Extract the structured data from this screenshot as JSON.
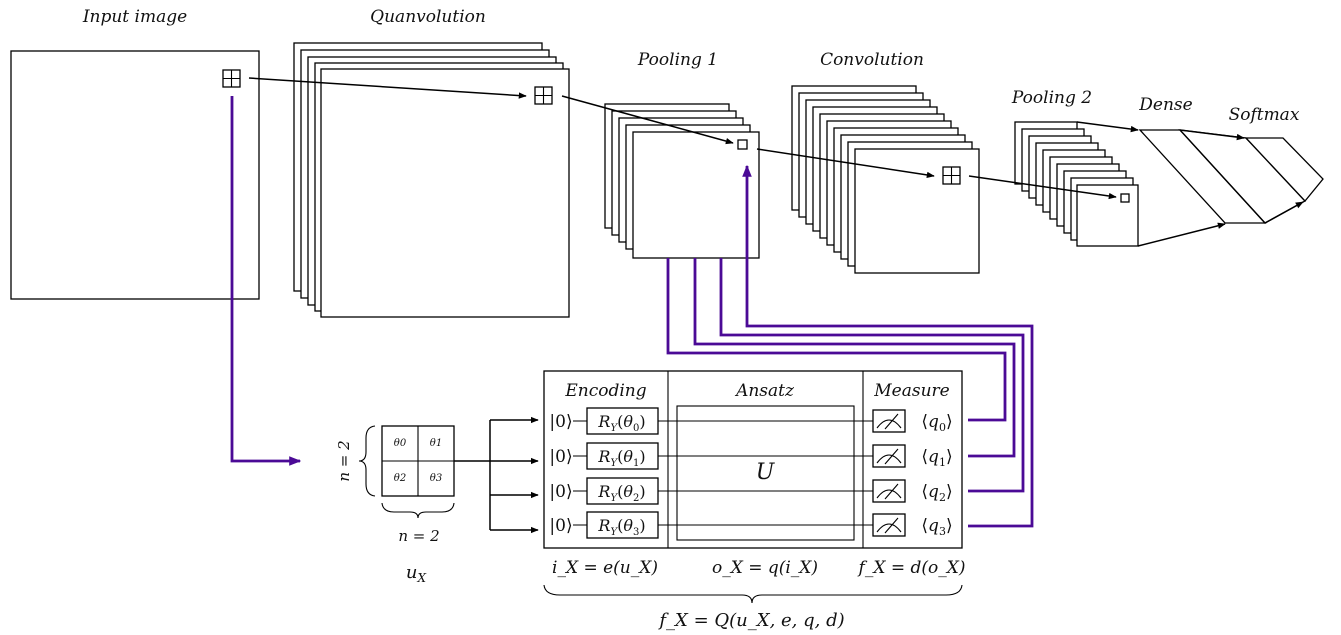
{
  "colors": {
    "quantum_link": "#4b0a96",
    "stroke": "#000000",
    "background": "#ffffff"
  },
  "stages": {
    "input": "Input image",
    "quanvolution": "Quanvolution",
    "pooling1": "Pooling 1",
    "convolution": "Convolution",
    "pooling2": "Pooling 2",
    "dense": "Dense",
    "softmax": "Softmax"
  },
  "patch": {
    "cells": [
      "θ0",
      "θ1",
      "θ2",
      "θ3"
    ],
    "size_label": "n = 2",
    "name_label": "u",
    "name_sub": "X"
  },
  "circuit": {
    "headers": {
      "encoding": "Encoding",
      "ansatz": "Ansatz",
      "measure": "Measure"
    },
    "qubits": [
      {
        "ket": "|0⟩",
        "gate": "R",
        "gate_sub": "Y",
        "angle": "θ",
        "angle_sub": "0",
        "readout": "q",
        "readout_sub": "0"
      },
      {
        "ket": "|0⟩",
        "gate": "R",
        "gate_sub": "Y",
        "angle": "θ",
        "angle_sub": "1",
        "readout": "q",
        "readout_sub": "1"
      },
      {
        "ket": "|0⟩",
        "gate": "R",
        "gate_sub": "Y",
        "angle": "θ",
        "angle_sub": "2",
        "readout": "q",
        "readout_sub": "2"
      },
      {
        "ket": "|0⟩",
        "gate": "R",
        "gate_sub": "Y",
        "angle": "θ",
        "angle_sub": "3",
        "readout": "q",
        "readout_sub": "3"
      }
    ],
    "unitary": "U",
    "equations": {
      "encoding": "i_X = e(u_X)",
      "ansatz": "o_X = q(i_X)",
      "measure": "f_X = d(o_X)",
      "total": "f_X = Q(u_X, e, q, d)"
    }
  }
}
